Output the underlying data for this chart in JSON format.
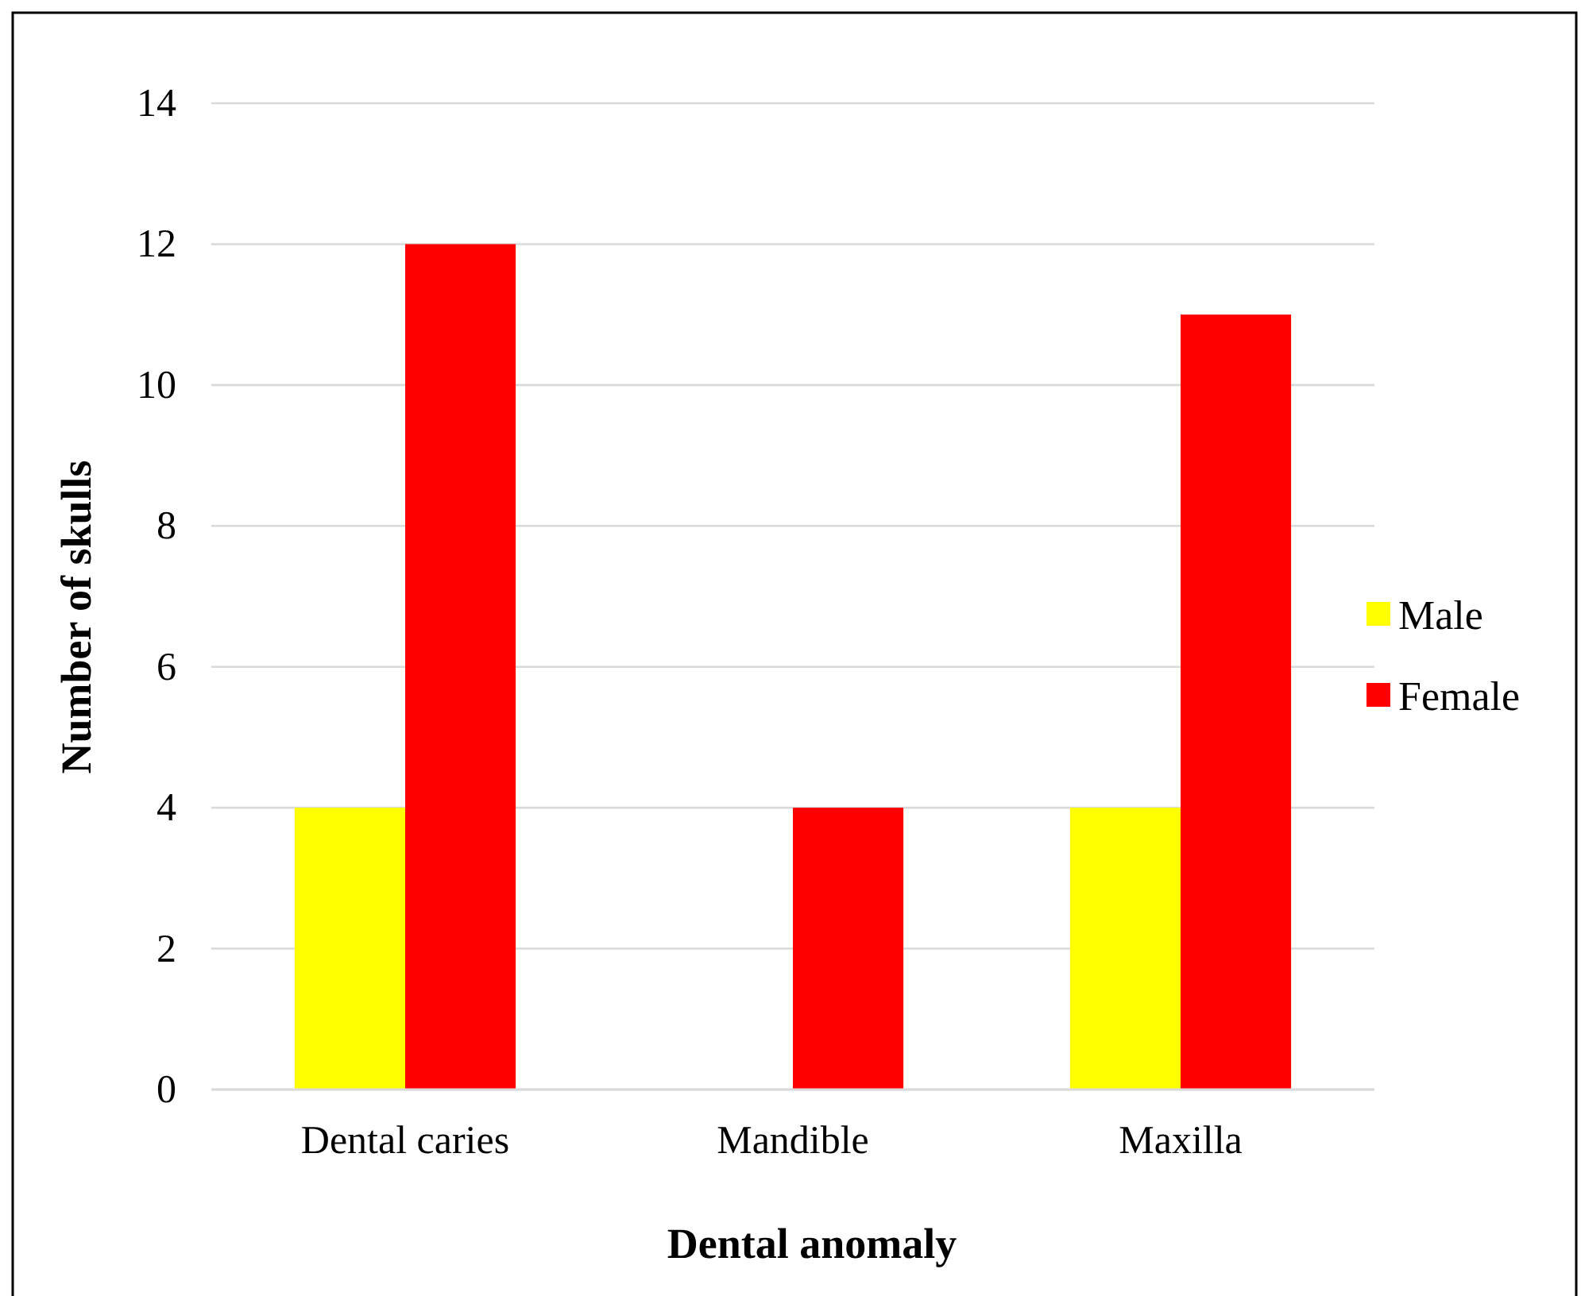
{
  "chart_data": {
    "type": "bar",
    "xlabel": "Dental anomaly",
    "ylabel": "Number of skulls",
    "categories": [
      "Dental caries",
      "Mandible",
      "Maxilla"
    ],
    "series": [
      {
        "name": "Male",
        "color": "#ffff00",
        "values": [
          4,
          0,
          4
        ]
      },
      {
        "name": "Female",
        "color": "#ff0000",
        "values": [
          12,
          4,
          11
        ]
      }
    ],
    "ylim": [
      0,
      14
    ],
    "yticks": [
      0,
      2,
      4,
      6,
      8,
      10,
      12,
      14
    ],
    "grid": "y",
    "legend": "right"
  }
}
